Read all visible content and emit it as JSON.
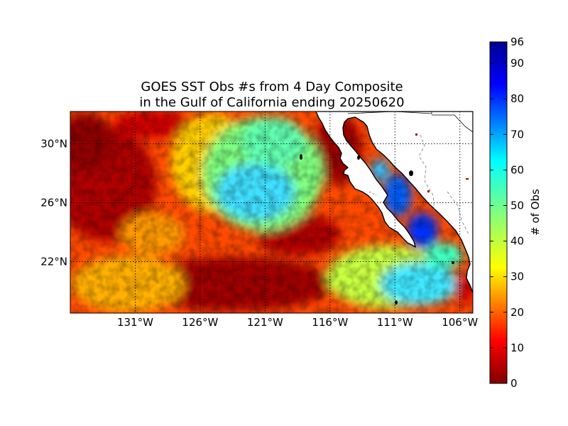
{
  "title": {
    "line1": "GOES SST Obs #s from 4 Day Composite",
    "line2": "in the Gulf of California ending 20250620"
  },
  "map": {
    "lon_range": [
      -136,
      -105
    ],
    "lat_range": [
      18.5,
      32.2
    ],
    "lat_ticks": [
      {
        "value": 30,
        "label": "30°N"
      },
      {
        "value": 26,
        "label": "26°N"
      },
      {
        "value": 22,
        "label": "22°N"
      }
    ],
    "lon_ticks": [
      {
        "value": -131,
        "label": "131°W"
      },
      {
        "value": -126,
        "label": "126°W"
      },
      {
        "value": -121,
        "label": "121°W"
      },
      {
        "value": -116,
        "label": "116°W"
      },
      {
        "value": -111,
        "label": "111°W"
      },
      {
        "value": -106,
        "label": "106°W"
      }
    ],
    "gridlines": "dotted",
    "land_color": "#ffffff",
    "coast_color": "#000000"
  },
  "colorbar": {
    "label": "# of Obs",
    "min": 0,
    "max": 96,
    "colormap": "jet_r",
    "ticks": [
      {
        "value": 0,
        "label": "0"
      },
      {
        "value": 10,
        "label": "10"
      },
      {
        "value": 20,
        "label": "20"
      },
      {
        "value": 30,
        "label": "30"
      },
      {
        "value": 40,
        "label": "40"
      },
      {
        "value": 50,
        "label": "50"
      },
      {
        "value": 60,
        "label": "60"
      },
      {
        "value": 70,
        "label": "70"
      },
      {
        "value": 80,
        "label": "80"
      },
      {
        "value": 90,
        "label": "90"
      },
      {
        "value": 96,
        "label": "96"
      }
    ]
  }
}
